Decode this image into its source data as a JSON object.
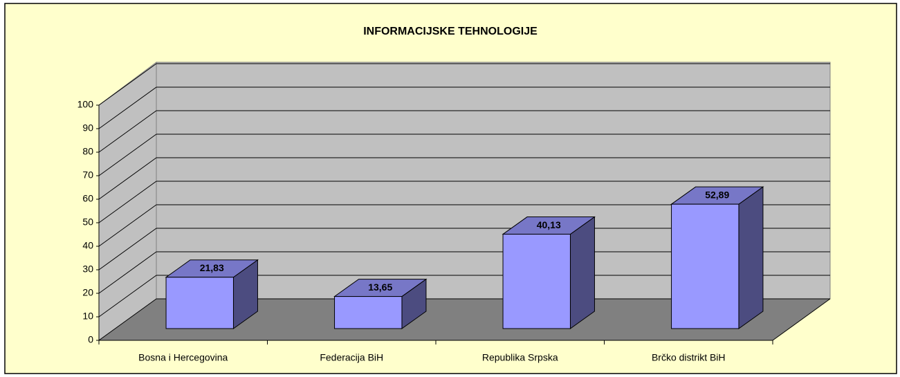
{
  "chart_data": {
    "type": "bar3d",
    "title": "INFORMACIJSKE TEHNOLOGIJE",
    "categories": [
      "Bosna i Hercegovina",
      "Federacija BiH",
      "Republika Srpska",
      "Brčko distrikt BiH"
    ],
    "values": [
      21.83,
      13.65,
      40.13,
      52.89
    ],
    "value_labels": [
      "21,83",
      "13,65",
      "40,13",
      "52,89"
    ],
    "color": "#9999ff",
    "ylim": [
      0,
      100
    ],
    "yticks": [
      0,
      10,
      20,
      30,
      40,
      50,
      60,
      70,
      80,
      90,
      100
    ],
    "grid": true
  }
}
